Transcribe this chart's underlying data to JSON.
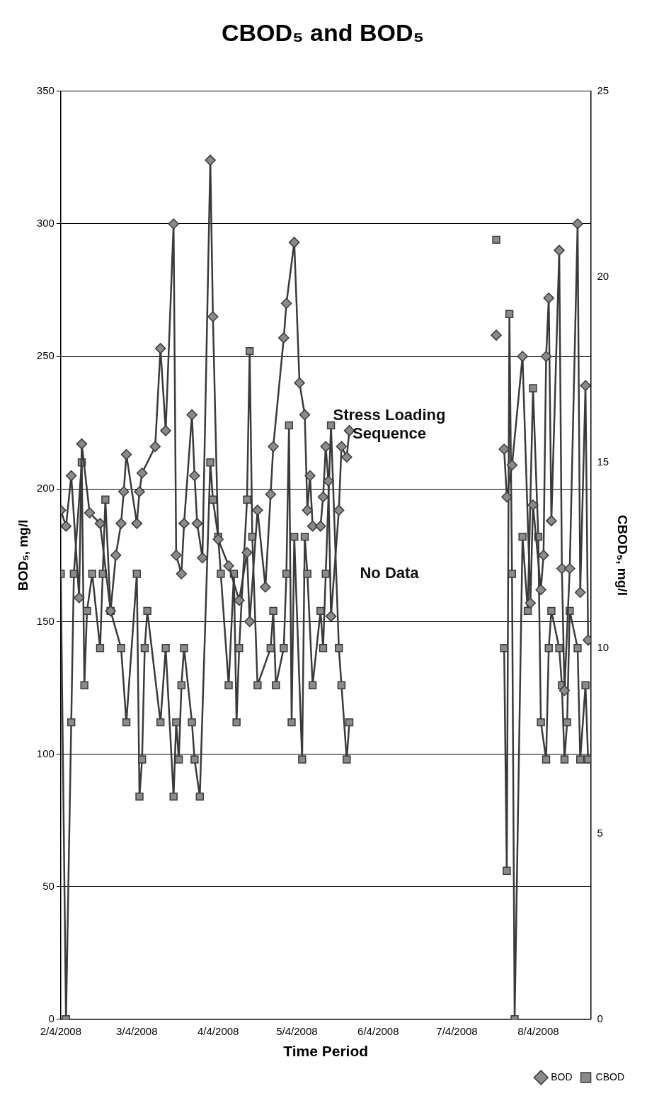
{
  "chart_data": {
    "type": "line",
    "title": "CBOD₅ and BOD₅",
    "xlabel": "Time Period",
    "ylabel": "BOD₅, mg/l",
    "y2label": "CBOD₅, mg/l",
    "xlim": [
      "2008-02-04",
      "2008-08-24"
    ],
    "xticks": [
      {
        "value": "2008-02-04",
        "label": "2/4/2008"
      },
      {
        "value": "2008-03-04",
        "label": "3/4/2008"
      },
      {
        "value": "2008-04-04",
        "label": "4/4/2008"
      },
      {
        "value": "2008-05-04",
        "label": "5/4/2008"
      },
      {
        "value": "2008-06-04",
        "label": "6/4/2008"
      },
      {
        "value": "2008-07-04",
        "label": "7/4/2008"
      },
      {
        "value": "2008-08-04",
        "label": "8/4/2008"
      }
    ],
    "ylim": [
      0,
      350
    ],
    "yticks": [
      0,
      50,
      100,
      150,
      200,
      250,
      300,
      350
    ],
    "y2lim": [
      0,
      25
    ],
    "y2ticks": [
      0,
      5,
      10,
      15,
      20,
      25
    ],
    "grid": "y",
    "legend": "bottom right",
    "line_style": "solid",
    "annotations": [
      "Stress Loading Sequence",
      "No Data"
    ],
    "series": [
      {
        "name": "BOD",
        "color": "#3a3a3a",
        "marker": "diamond",
        "x": [
          "2008-02-04",
          "2008-02-06",
          "2008-02-08",
          "2008-02-11",
          "2008-02-12",
          "2008-02-15",
          "2008-02-19",
          "2008-02-23",
          "2008-02-25",
          "2008-02-27",
          "2008-02-28",
          "2008-02-29",
          "2008-03-04",
          "2008-03-05",
          "2008-03-06",
          "2008-03-11",
          "2008-03-13",
          "2008-03-15",
          "2008-03-18",
          "2008-03-19",
          "2008-03-21",
          "2008-03-22",
          "2008-03-25",
          "2008-03-26",
          "2008-03-27",
          "2008-03-29",
          "2008-04-01",
          "2008-04-02",
          "2008-04-04",
          "2008-04-08",
          "2008-04-12",
          "2008-04-15",
          "2008-04-16",
          "2008-04-19",
          "2008-04-22",
          "2008-04-24",
          "2008-04-25",
          "2008-04-29",
          "2008-04-30",
          "2008-05-03",
          "2008-05-05",
          "2008-05-07",
          "2008-05-08",
          "2008-05-09",
          "2008-05-10",
          "2008-05-13",
          "2008-05-14",
          "2008-05-15",
          "2008-05-16",
          "2008-05-17",
          "2008-05-20",
          "2008-05-21",
          "2008-05-23",
          "2008-05-24",
          "2008-05-25",
          "2008-07-19",
          "2008-07-20",
          "2008-07-22",
          "2008-07-23",
          "2008-07-25",
          "2008-07-29",
          "2008-08-01",
          "2008-08-02",
          "2008-08-05",
          "2008-08-06",
          "2008-08-07",
          "2008-08-08",
          "2008-08-09",
          "2008-08-12",
          "2008-08-13",
          "2008-08-14",
          "2008-08-16",
          "2008-08-19",
          "2008-08-20",
          "2008-08-22",
          "2008-08-23"
        ],
        "values": [
          192,
          186,
          205,
          159,
          217,
          191,
          187,
          154,
          175,
          187,
          199,
          213,
          187,
          199,
          206,
          216,
          253,
          222,
          300,
          175,
          168,
          187,
          228,
          205,
          187,
          174,
          324,
          265,
          181,
          171,
          158,
          176,
          150,
          192,
          163,
          198,
          216,
          257,
          270,
          293,
          240,
          228,
          192,
          205,
          186,
          186,
          197,
          216,
          203,
          152,
          192,
          216,
          212,
          222,
          null,
          258,
          null,
          215,
          197,
          209,
          250,
          157,
          194,
          162,
          175,
          250,
          272,
          188,
          290,
          170,
          124,
          170,
          300,
          161,
          239,
          143
        ]
      },
      {
        "name": "CBOD",
        "color": "#3a3a3a",
        "marker": "square",
        "axis": "y2",
        "x": [
          "2008-02-04",
          "2008-02-06",
          "2008-02-08",
          "2008-02-09",
          "2008-02-12",
          "2008-02-13",
          "2008-02-14",
          "2008-02-16",
          "2008-02-19",
          "2008-02-20",
          "2008-02-21",
          "2008-02-23",
          "2008-02-27",
          "2008-02-29",
          "2008-03-04",
          "2008-03-05",
          "2008-03-06",
          "2008-03-07",
          "2008-03-08",
          "2008-03-13",
          "2008-03-15",
          "2008-03-18",
          "2008-03-19",
          "2008-03-20",
          "2008-03-21",
          "2008-03-22",
          "2008-03-25",
          "2008-03-26",
          "2008-03-28",
          "2008-04-01",
          "2008-04-02",
          "2008-04-04",
          "2008-04-05",
          "2008-04-08",
          "2008-04-10",
          "2008-04-11",
          "2008-04-12",
          "2008-04-15",
          "2008-04-16",
          "2008-04-17",
          "2008-04-19",
          "2008-04-24",
          "2008-04-25",
          "2008-04-26",
          "2008-04-29",
          "2008-04-30",
          "2008-05-01",
          "2008-05-02",
          "2008-05-03",
          "2008-05-06",
          "2008-05-07",
          "2008-05-08",
          "2008-05-10",
          "2008-05-13",
          "2008-05-14",
          "2008-05-15",
          "2008-05-17",
          "2008-05-20",
          "2008-05-21",
          "2008-05-23",
          "2008-05-24",
          "2008-05-25",
          "2008-07-19",
          "2008-07-20",
          "2008-07-22",
          "2008-07-23",
          "2008-07-24",
          "2008-07-25",
          "2008-07-26",
          "2008-07-29",
          "2008-07-31",
          "2008-08-02",
          "2008-08-04",
          "2008-08-05",
          "2008-08-07",
          "2008-08-08",
          "2008-08-09",
          "2008-08-12",
          "2008-08-13",
          "2008-08-14",
          "2008-08-15",
          "2008-08-16",
          "2008-08-19",
          "2008-08-20",
          "2008-08-22",
          "2008-08-23"
        ],
        "values": [
          12,
          0,
          8,
          12,
          15,
          9,
          11,
          12,
          10,
          12,
          14,
          11,
          10,
          8,
          12,
          6,
          7,
          10,
          11,
          8,
          10,
          6,
          8,
          7,
          9,
          10,
          8,
          7,
          6,
          15,
          14,
          13,
          12,
          9,
          12,
          8,
          10,
          14,
          18,
          13,
          9,
          10,
          11,
          9,
          10,
          12,
          16,
          8,
          13,
          7,
          13,
          12,
          9,
          11,
          10,
          12,
          16,
          10,
          9,
          7,
          8,
          null,
          21,
          null,
          10,
          4,
          19,
          12,
          0,
          13,
          11,
          17,
          13,
          8,
          7,
          10,
          11,
          10,
          9,
          7,
          8,
          11,
          10,
          7,
          9,
          7
        ]
      }
    ]
  }
}
